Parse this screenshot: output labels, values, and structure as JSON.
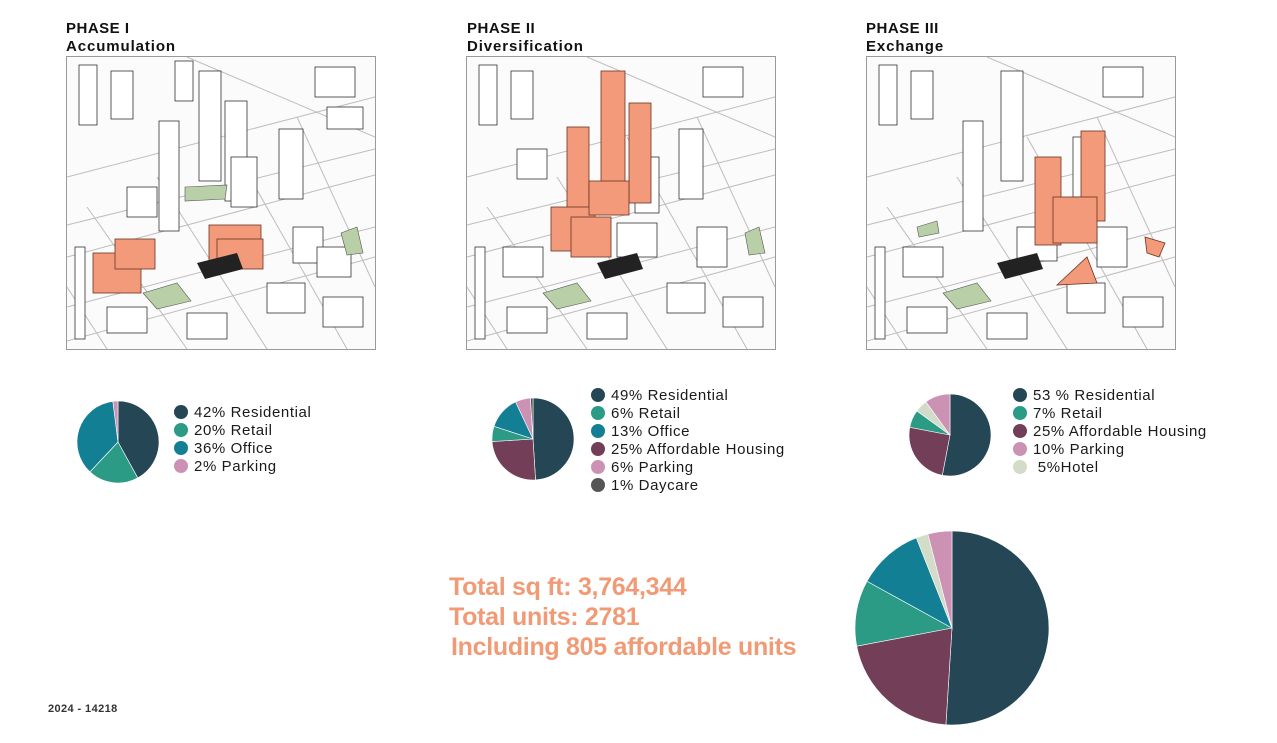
{
  "phases": [
    {
      "label": "PHASE I",
      "name": "Accumulation",
      "legend": [
        {
          "text": "42% Residential",
          "color": "#254655"
        },
        {
          "text": "20% Retail",
          "color": "#2b9b86"
        },
        {
          "text": "36% Office",
          "color": "#127f95"
        },
        {
          "text": "2% Parking",
          "color": "#cc92b4"
        }
      ]
    },
    {
      "label": "PHASE II",
      "name": "Diversification",
      "legend": [
        {
          "text": "49% Residential",
          "color": "#254655"
        },
        {
          "text": "6% Retail",
          "color": "#2b9b86"
        },
        {
          "text": "13% Office",
          "color": "#127f95"
        },
        {
          "text": "25% Affordable Housing",
          "color": "#733e57"
        },
        {
          "text": "6% Parking",
          "color": "#cc92b4"
        },
        {
          "text": "1% Daycare",
          "color": "#555555"
        }
      ]
    },
    {
      "label": "PHASE III",
      "name": "Exchange",
      "legend": [
        {
          "text": "53 % Residential",
          "color": "#254655"
        },
        {
          "text": "7% Retail",
          "color": "#2b9b86"
        },
        {
          "text": "25% Affordable Housing",
          "color": "#733e57"
        },
        {
          "text": "10% Parking",
          "color": "#cc92b4"
        },
        {
          "text": " 5%Hotel",
          "color": "#d2dcc8"
        }
      ]
    }
  ],
  "totals": {
    "sqft": "Total sq ft: 3,764,344",
    "units": "Total units: 2781",
    "affordable": "Including 805 affordable units"
  },
  "footer": "2024 - 14218",
  "chart_data": [
    {
      "type": "pie",
      "title": "",
      "categories": [
        "Residential",
        "Retail",
        "Office",
        "Parking"
      ],
      "values": [
        42,
        20,
        36,
        2
      ],
      "colors": [
        "#254655",
        "#2b9b86",
        "#127f95",
        "#cc92b4"
      ]
    },
    {
      "type": "pie",
      "title": "",
      "categories": [
        "Residential",
        "Affordable Housing",
        "Retail",
        "Office",
        "Parking",
        "Daycare"
      ],
      "values": [
        49,
        25,
        6,
        13,
        6,
        1
      ],
      "colors": [
        "#254655",
        "#733e57",
        "#2b9b86",
        "#127f95",
        "#cc92b4",
        "#555555"
      ]
    },
    {
      "type": "pie",
      "title": "",
      "categories": [
        "Residential",
        "Affordable Housing",
        "Retail",
        "Hotel",
        "Parking"
      ],
      "values": [
        53,
        25,
        7,
        5,
        10
      ],
      "colors": [
        "#254655",
        "#733e57",
        "#2b9b86",
        "#d2dcc8",
        "#cc92b4"
      ]
    },
    {
      "type": "pie",
      "title": "",
      "categories": [
        "Residential",
        "Affordable Housing",
        "Retail",
        "Office",
        "Hotel",
        "Parking"
      ],
      "values": [
        51,
        21,
        11,
        11,
        2,
        4
      ],
      "colors": [
        "#254655",
        "#733e57",
        "#2b9b86",
        "#127f95",
        "#d2dcc8",
        "#cc92b4"
      ]
    }
  ]
}
